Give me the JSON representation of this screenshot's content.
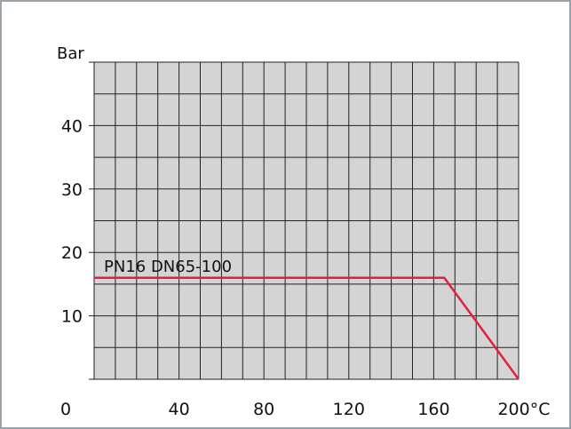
{
  "chart_data": {
    "type": "line",
    "title": "",
    "ylabel": "Bar",
    "xunit": "°C",
    "xlim": [
      0,
      200
    ],
    "ylim": [
      0,
      50
    ],
    "x_ticks": [
      "0",
      "40",
      "80",
      "120",
      "160",
      "200"
    ],
    "y_ticks": [
      "10",
      "20",
      "30",
      "40"
    ],
    "grid": true,
    "colors": {
      "grid_fill": "#d4d4d4",
      "grid_line": "#222222",
      "series": "#e02040"
    },
    "series": [
      {
        "name": "PN16  DN65-100",
        "x": [
          0,
          165,
          200
        ],
        "y": [
          16,
          16,
          0
        ]
      }
    ]
  }
}
